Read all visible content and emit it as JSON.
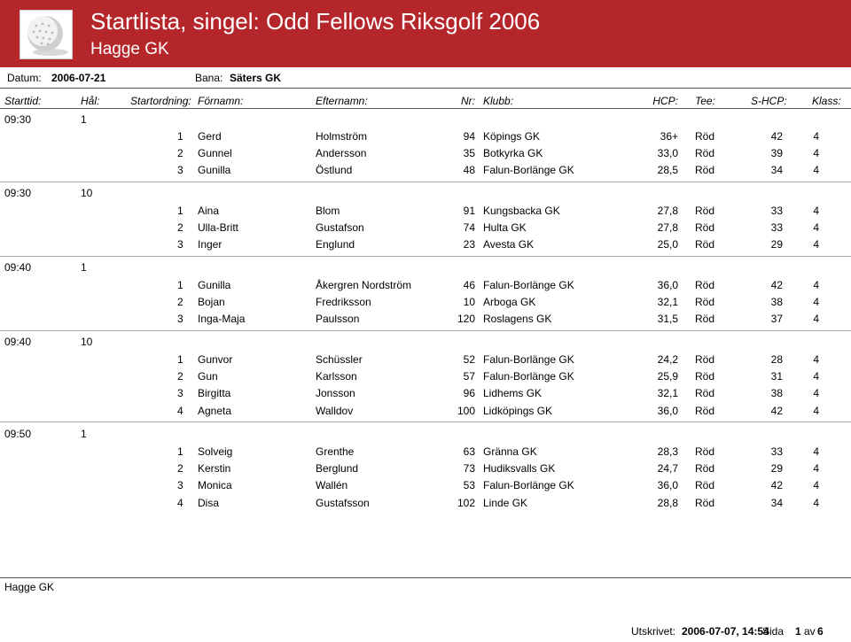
{
  "header": {
    "title": "Startlista, singel:   Odd Fellows Riksgolf 2006",
    "subtitle": "Hagge GK"
  },
  "info": {
    "date_label": "Datum:",
    "date_value": "2006-07-21",
    "course_label": "Bana:",
    "course_value": "Säters GK"
  },
  "columns": {
    "start_time": "Starttid:",
    "hole": "Hål:",
    "order": "Startordning:",
    "first_name": "Förnamn:",
    "last_name": "Efternamn:",
    "number": "Nr:",
    "club": "Klubb:",
    "hcp": "HCP:",
    "tee": "Tee:",
    "shcp": "S-HCP:",
    "class": "Klass:"
  },
  "groups": [
    {
      "time": "09:30",
      "hole": "1",
      "players": [
        {
          "order": "1",
          "first": "Gerd",
          "last": "Holmström",
          "nr": "94",
          "club": "Köpings GK",
          "hcp": "36+",
          "tee": "Röd",
          "shcp": "42",
          "klass": "4"
        },
        {
          "order": "2",
          "first": "Gunnel",
          "last": "Andersson",
          "nr": "35",
          "club": "Botkyrka GK",
          "hcp": "33,0",
          "tee": "Röd",
          "shcp": "39",
          "klass": "4"
        },
        {
          "order": "3",
          "first": "Gunilla",
          "last": "Östlund",
          "nr": "48",
          "club": "Falun-Borlänge GK",
          "hcp": "28,5",
          "tee": "Röd",
          "shcp": "34",
          "klass": "4"
        }
      ]
    },
    {
      "time": "09:30",
      "hole": "10",
      "players": [
        {
          "order": "1",
          "first": "Aina",
          "last": "Blom",
          "nr": "91",
          "club": "Kungsbacka GK",
          "hcp": "27,8",
          "tee": "Röd",
          "shcp": "33",
          "klass": "4"
        },
        {
          "order": "2",
          "first": "Ulla-Britt",
          "last": "Gustafson",
          "nr": "74",
          "club": "Hulta GK",
          "hcp": "27,8",
          "tee": "Röd",
          "shcp": "33",
          "klass": "4"
        },
        {
          "order": "3",
          "first": "Inger",
          "last": "Englund",
          "nr": "23",
          "club": "Avesta GK",
          "hcp": "25,0",
          "tee": "Röd",
          "shcp": "29",
          "klass": "4"
        }
      ]
    },
    {
      "time": "09:40",
      "hole": "1",
      "players": [
        {
          "order": "1",
          "first": "Gunilla",
          "last": "Åkergren Nordström",
          "nr": "46",
          "club": "Falun-Borlänge GK",
          "hcp": "36,0",
          "tee": "Röd",
          "shcp": "42",
          "klass": "4"
        },
        {
          "order": "2",
          "first": "Bojan",
          "last": "Fredriksson",
          "nr": "10",
          "club": "Arboga GK",
          "hcp": "32,1",
          "tee": "Röd",
          "shcp": "38",
          "klass": "4"
        },
        {
          "order": "3",
          "first": "Inga-Maja",
          "last": "Paulsson",
          "nr": "120",
          "club": "Roslagens GK",
          "hcp": "31,5",
          "tee": "Röd",
          "shcp": "37",
          "klass": "4"
        }
      ]
    },
    {
      "time": "09:40",
      "hole": "10",
      "players": [
        {
          "order": "1",
          "first": "Gunvor",
          "last": "Schüssler",
          "nr": "52",
          "club": "Falun-Borlänge GK",
          "hcp": "24,2",
          "tee": "Röd",
          "shcp": "28",
          "klass": "4"
        },
        {
          "order": "2",
          "first": "Gun",
          "last": "Karlsson",
          "nr": "57",
          "club": "Falun-Borlänge GK",
          "hcp": "25,9",
          "tee": "Röd",
          "shcp": "31",
          "klass": "4"
        },
        {
          "order": "3",
          "first": "Birgitta",
          "last": "Jonsson",
          "nr": "96",
          "club": "Lidhems GK",
          "hcp": "32,1",
          "tee": "Röd",
          "shcp": "38",
          "klass": "4"
        },
        {
          "order": "4",
          "first": "Agneta",
          "last": "Walldov",
          "nr": "100",
          "club": "Lidköpings GK",
          "hcp": "36,0",
          "tee": "Röd",
          "shcp": "42",
          "klass": "4"
        }
      ]
    },
    {
      "time": "09:50",
      "hole": "1",
      "players": [
        {
          "order": "1",
          "first": "Solveig",
          "last": "Grenthe",
          "nr": "63",
          "club": "Gränna GK",
          "hcp": "28,3",
          "tee": "Röd",
          "shcp": "33",
          "klass": "4"
        },
        {
          "order": "2",
          "first": "Kerstin",
          "last": "Berglund",
          "nr": "73",
          "club": "Hudiksvalls GK",
          "hcp": "24,7",
          "tee": "Röd",
          "shcp": "29",
          "klass": "4"
        },
        {
          "order": "3",
          "first": "Monica",
          "last": "Wallén",
          "nr": "53",
          "club": "Falun-Borlänge GK",
          "hcp": "36,0",
          "tee": "Röd",
          "shcp": "42",
          "klass": "4"
        },
        {
          "order": "4",
          "first": "Disa",
          "last": "Gustafsson",
          "nr": "102",
          "club": "Linde GK",
          "hcp": "28,8",
          "tee": "Röd",
          "shcp": "34",
          "klass": "4"
        }
      ]
    }
  ],
  "footer": {
    "club": "Hagge GK",
    "printed_label": "Utskrivet:",
    "printed_value": "2006-07-07, 14:54",
    "page_label": "Sida",
    "page_current": "1",
    "page_of": "av",
    "page_total": "6"
  },
  "icons": {
    "logo": "golf-ball-icon"
  },
  "colors": {
    "header_bg": "#b5262b",
    "header_text": "#ffffff"
  }
}
